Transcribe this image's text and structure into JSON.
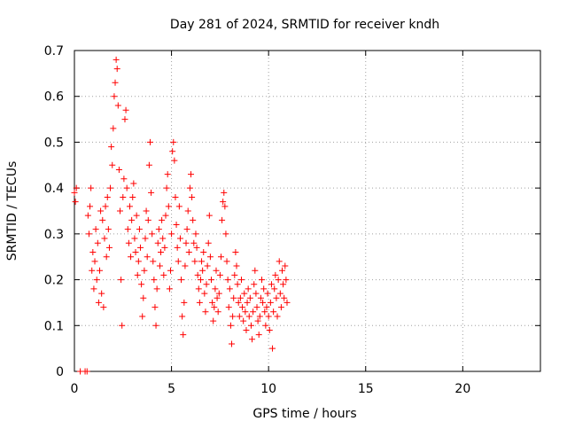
{
  "chart_data": {
    "type": "scatter",
    "title": "Day 281 of 2024, SRMTID for receiver kndh",
    "xlabel": "GPS time / hours",
    "ylabel": "SRMTID / TECUs",
    "xlim": [
      0,
      24
    ],
    "ylim": [
      0,
      0.7
    ],
    "xticks": [
      0,
      5,
      10,
      15,
      20
    ],
    "yticks": [
      0,
      0.1,
      0.2,
      0.3,
      0.4,
      0.5,
      0.6,
      0.7
    ],
    "xtick_labels": [
      "0",
      "5",
      "10",
      "15",
      "20"
    ],
    "ytick_labels": [
      "0",
      "0.1",
      "0.2",
      "0.3",
      "0.4",
      "0.5",
      "0.6",
      "0.7"
    ],
    "grid": true,
    "marker": "+",
    "color": "#ff0000",
    "series": [
      {
        "name": "SRMTID",
        "points": [
          [
            0.0,
            0.39
          ],
          [
            0.05,
            0.37
          ],
          [
            0.1,
            0.4
          ],
          [
            0.3,
            0.0
          ],
          [
            0.55,
            0.0
          ],
          [
            0.65,
            0.0
          ],
          [
            0.7,
            0.34
          ],
          [
            0.75,
            0.3
          ],
          [
            0.8,
            0.36
          ],
          [
            0.85,
            0.4
          ],
          [
            0.9,
            0.22
          ],
          [
            0.95,
            0.26
          ],
          [
            1.0,
            0.18
          ],
          [
            1.05,
            0.24
          ],
          [
            1.1,
            0.31
          ],
          [
            1.15,
            0.2
          ],
          [
            1.2,
            0.28
          ],
          [
            1.25,
            0.15
          ],
          [
            1.3,
            0.22
          ],
          [
            1.35,
            0.35
          ],
          [
            1.4,
            0.17
          ],
          [
            1.45,
            0.33
          ],
          [
            1.5,
            0.14
          ],
          [
            1.55,
            0.29
          ],
          [
            1.6,
            0.36
          ],
          [
            1.65,
            0.25
          ],
          [
            1.7,
            0.38
          ],
          [
            1.75,
            0.31
          ],
          [
            1.8,
            0.27
          ],
          [
            1.85,
            0.4
          ],
          [
            1.9,
            0.49
          ],
          [
            1.95,
            0.45
          ],
          [
            2.0,
            0.53
          ],
          [
            2.05,
            0.6
          ],
          [
            2.1,
            0.63
          ],
          [
            2.15,
            0.68
          ],
          [
            2.2,
            0.66
          ],
          [
            2.25,
            0.58
          ],
          [
            2.3,
            0.44
          ],
          [
            2.35,
            0.35
          ],
          [
            2.4,
            0.2
          ],
          [
            2.45,
            0.1
          ],
          [
            2.5,
            0.38
          ],
          [
            2.55,
            0.42
          ],
          [
            2.6,
            0.55
          ],
          [
            2.65,
            0.57
          ],
          [
            2.7,
            0.4
          ],
          [
            2.75,
            0.31
          ],
          [
            2.8,
            0.28
          ],
          [
            2.85,
            0.36
          ],
          [
            2.9,
            0.25
          ],
          [
            2.95,
            0.33
          ],
          [
            3.0,
            0.38
          ],
          [
            3.05,
            0.41
          ],
          [
            3.1,
            0.29
          ],
          [
            3.15,
            0.26
          ],
          [
            3.2,
            0.34
          ],
          [
            3.25,
            0.21
          ],
          [
            3.3,
            0.24
          ],
          [
            3.35,
            0.31
          ],
          [
            3.4,
            0.27
          ],
          [
            3.45,
            0.19
          ],
          [
            3.5,
            0.12
          ],
          [
            3.55,
            0.16
          ],
          [
            3.6,
            0.22
          ],
          [
            3.65,
            0.29
          ],
          [
            3.7,
            0.35
          ],
          [
            3.75,
            0.25
          ],
          [
            3.8,
            0.33
          ],
          [
            3.85,
            0.45
          ],
          [
            3.9,
            0.5
          ],
          [
            3.95,
            0.39
          ],
          [
            4.0,
            0.3
          ],
          [
            4.05,
            0.24
          ],
          [
            4.1,
            0.2
          ],
          [
            4.15,
            0.14
          ],
          [
            4.2,
            0.1
          ],
          [
            4.25,
            0.18
          ],
          [
            4.3,
            0.28
          ],
          [
            4.35,
            0.31
          ],
          [
            4.4,
            0.23
          ],
          [
            4.45,
            0.26
          ],
          [
            4.5,
            0.33
          ],
          [
            4.55,
            0.29
          ],
          [
            4.6,
            0.21
          ],
          [
            4.65,
            0.27
          ],
          [
            4.7,
            0.34
          ],
          [
            4.75,
            0.4
          ],
          [
            4.8,
            0.43
          ],
          [
            4.85,
            0.36
          ],
          [
            4.9,
            0.18
          ],
          [
            4.95,
            0.22
          ],
          [
            5.0,
            0.3
          ],
          [
            5.05,
            0.48
          ],
          [
            5.1,
            0.5
          ],
          [
            5.15,
            0.46
          ],
          [
            5.2,
            0.38
          ],
          [
            5.25,
            0.32
          ],
          [
            5.3,
            0.27
          ],
          [
            5.35,
            0.24
          ],
          [
            5.4,
            0.36
          ],
          [
            5.45,
            0.29
          ],
          [
            5.5,
            0.2
          ],
          [
            5.55,
            0.12
          ],
          [
            5.6,
            0.08
          ],
          [
            5.65,
            0.15
          ],
          [
            5.7,
            0.23
          ],
          [
            5.75,
            0.28
          ],
          [
            5.8,
            0.31
          ],
          [
            5.85,
            0.35
          ],
          [
            5.9,
            0.26
          ],
          [
            5.95,
            0.4
          ],
          [
            6.0,
            0.43
          ],
          [
            6.05,
            0.38
          ],
          [
            6.1,
            0.33
          ],
          [
            6.15,
            0.28
          ],
          [
            6.2,
            0.24
          ],
          [
            6.25,
            0.3
          ],
          [
            6.3,
            0.27
          ],
          [
            6.35,
            0.21
          ],
          [
            6.4,
            0.18
          ],
          [
            6.45,
            0.15
          ],
          [
            6.5,
            0.2
          ],
          [
            6.55,
            0.24
          ],
          [
            6.6,
            0.22
          ],
          [
            6.65,
            0.26
          ],
          [
            6.7,
            0.17
          ],
          [
            6.75,
            0.13
          ],
          [
            6.8,
            0.19
          ],
          [
            6.85,
            0.23
          ],
          [
            6.9,
            0.28
          ],
          [
            6.95,
            0.34
          ],
          [
            7.0,
            0.25
          ],
          [
            7.05,
            0.2
          ],
          [
            7.1,
            0.15
          ],
          [
            7.15,
            0.11
          ],
          [
            7.2,
            0.14
          ],
          [
            7.25,
            0.18
          ],
          [
            7.3,
            0.22
          ],
          [
            7.35,
            0.16
          ],
          [
            7.4,
            0.13
          ],
          [
            7.45,
            0.17
          ],
          [
            7.5,
            0.21
          ],
          [
            7.55,
            0.25
          ],
          [
            7.6,
            0.33
          ],
          [
            7.65,
            0.37
          ],
          [
            7.7,
            0.39
          ],
          [
            7.75,
            0.36
          ],
          [
            7.8,
            0.3
          ],
          [
            7.85,
            0.24
          ],
          [
            7.9,
            0.2
          ],
          [
            7.95,
            0.14
          ],
          [
            8.0,
            0.18
          ],
          [
            8.05,
            0.1
          ],
          [
            8.1,
            0.06
          ],
          [
            8.15,
            0.12
          ],
          [
            8.2,
            0.16
          ],
          [
            8.25,
            0.21
          ],
          [
            8.3,
            0.26
          ],
          [
            8.35,
            0.23
          ],
          [
            8.4,
            0.19
          ],
          [
            8.45,
            0.15
          ],
          [
            8.5,
            0.12
          ],
          [
            8.55,
            0.16
          ],
          [
            8.6,
            0.2
          ],
          [
            8.65,
            0.14
          ],
          [
            8.7,
            0.11
          ],
          [
            8.75,
            0.17
          ],
          [
            8.8,
            0.13
          ],
          [
            8.85,
            0.09
          ],
          [
            8.9,
            0.15
          ],
          [
            8.95,
            0.18
          ],
          [
            9.0,
            0.12
          ],
          [
            9.05,
            0.16
          ],
          [
            9.1,
            0.1
          ],
          [
            9.15,
            0.07
          ],
          [
            9.2,
            0.13
          ],
          [
            9.25,
            0.19
          ],
          [
            9.3,
            0.22
          ],
          [
            9.35,
            0.17
          ],
          [
            9.4,
            0.14
          ],
          [
            9.45,
            0.11
          ],
          [
            9.5,
            0.08
          ],
          [
            9.55,
            0.12
          ],
          [
            9.6,
            0.16
          ],
          [
            9.65,
            0.2
          ],
          [
            9.7,
            0.15
          ],
          [
            9.75,
            0.18
          ],
          [
            9.8,
            0.13
          ],
          [
            9.85,
            0.1
          ],
          [
            9.9,
            0.14
          ],
          [
            9.95,
            0.17
          ],
          [
            10.0,
            0.12
          ],
          [
            10.05,
            0.09
          ],
          [
            10.1,
            0.15
          ],
          [
            10.15,
            0.19
          ],
          [
            10.2,
            0.05
          ],
          [
            10.25,
            0.13
          ],
          [
            10.3,
            0.18
          ],
          [
            10.35,
            0.21
          ],
          [
            10.4,
            0.16
          ],
          [
            10.45,
            0.12
          ],
          [
            10.5,
            0.2
          ],
          [
            10.55,
            0.24
          ],
          [
            10.6,
            0.17
          ],
          [
            10.65,
            0.14
          ],
          [
            10.7,
            0.22
          ],
          [
            10.75,
            0.19
          ],
          [
            10.8,
            0.16
          ],
          [
            10.85,
            0.23
          ],
          [
            10.9,
            0.2
          ],
          [
            10.95,
            0.15
          ]
        ]
      }
    ]
  }
}
